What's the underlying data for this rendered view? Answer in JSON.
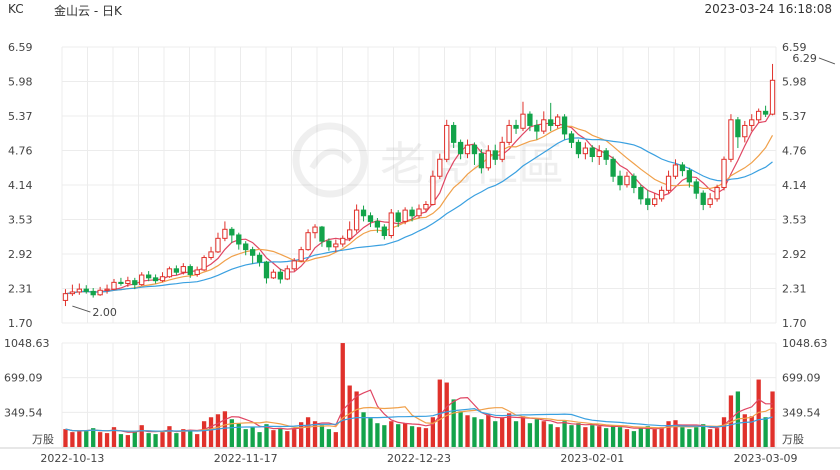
{
  "header": {
    "symbol": "KC",
    "name": "金山云 - 日K",
    "datetime": "2023-03-24 16:18:08"
  },
  "watermark": {
    "text": "老虎社區"
  },
  "colors": {
    "up": "#e0312b",
    "down": "#13a34a",
    "ma1": "#e04663",
    "ma2": "#f0a04a",
    "ma3": "#3aa0e0",
    "grid": "#ececec",
    "axis_text": "#444444"
  },
  "chart_data": {
    "type": "candlestick",
    "price_axis": {
      "ticks": [
        "6.59",
        "5.98",
        "5.37",
        "4.76",
        "4.14",
        "3.53",
        "2.92",
        "2.31",
        "1.70"
      ],
      "ylim": [
        1.7,
        6.59
      ]
    },
    "volume_axis": {
      "ticks": [
        "1048.63",
        "699.09",
        "349.54"
      ],
      "unit": "万股",
      "ylim": [
        0,
        1048.63
      ]
    },
    "x_ticks": [
      {
        "label": "2022-10-13",
        "index": 1
      },
      {
        "label": "2022-11-17",
        "index": 26
      },
      {
        "label": "2022-12-23",
        "index": 51
      },
      {
        "label": "2023-02-01",
        "index": 76
      },
      {
        "label": "2023-03-09",
        "index": 101
      }
    ],
    "annotations": [
      {
        "text": "6.29",
        "index": 111,
        "value": 6.29,
        "kind": "high"
      },
      {
        "text": "2.00",
        "index": 1,
        "value": 2.0,
        "kind": "low"
      }
    ],
    "candles": [
      [
        2.1,
        2.22,
        2.0,
        2.3,
        180
      ],
      [
        2.22,
        2.25,
        2.18,
        2.38,
        150
      ],
      [
        2.25,
        2.3,
        2.2,
        2.4,
        160
      ],
      [
        2.3,
        2.26,
        2.22,
        2.37,
        170
      ],
      [
        2.26,
        2.2,
        2.15,
        2.32,
        190
      ],
      [
        2.2,
        2.28,
        2.18,
        2.34,
        150
      ],
      [
        2.28,
        2.3,
        2.22,
        2.38,
        140
      ],
      [
        2.3,
        2.42,
        2.28,
        2.48,
        200
      ],
      [
        2.42,
        2.4,
        2.36,
        2.5,
        130
      ],
      [
        2.4,
        2.45,
        2.34,
        2.52,
        120
      ],
      [
        2.45,
        2.38,
        2.3,
        2.5,
        160
      ],
      [
        2.38,
        2.55,
        2.36,
        2.6,
        220
      ],
      [
        2.55,
        2.5,
        2.44,
        2.62,
        140
      ],
      [
        2.5,
        2.45,
        2.4,
        2.56,
        130
      ],
      [
        2.45,
        2.52,
        2.42,
        2.6,
        150
      ],
      [
        2.52,
        2.66,
        2.5,
        2.7,
        210
      ],
      [
        2.66,
        2.6,
        2.55,
        2.72,
        140
      ],
      [
        2.6,
        2.7,
        2.56,
        2.76,
        180
      ],
      [
        2.7,
        2.56,
        2.5,
        2.74,
        170
      ],
      [
        2.56,
        2.64,
        2.52,
        2.7,
        130
      ],
      [
        2.64,
        2.86,
        2.62,
        2.9,
        260
      ],
      [
        2.86,
        2.96,
        2.82,
        3.05,
        300
      ],
      [
        2.96,
        3.2,
        2.94,
        3.3,
        330
      ],
      [
        3.2,
        3.36,
        3.15,
        3.5,
        360
      ],
      [
        3.36,
        3.26,
        3.12,
        3.4,
        280
      ],
      [
        3.26,
        3.1,
        3.0,
        3.3,
        240
      ],
      [
        3.1,
        3.0,
        2.9,
        3.15,
        180
      ],
      [
        3.0,
        2.9,
        2.75,
        3.05,
        200
      ],
      [
        2.9,
        2.78,
        2.7,
        2.95,
        150
      ],
      [
        2.78,
        2.5,
        2.4,
        2.8,
        230
      ],
      [
        2.5,
        2.6,
        2.48,
        2.65,
        170
      ],
      [
        2.6,
        2.48,
        2.4,
        2.66,
        190
      ],
      [
        2.48,
        2.66,
        2.46,
        2.72,
        160
      ],
      [
        2.66,
        2.8,
        2.62,
        2.85,
        180
      ],
      [
        2.8,
        3.0,
        2.78,
        3.05,
        250
      ],
      [
        3.0,
        3.3,
        2.98,
        3.36,
        300
      ],
      [
        3.3,
        3.4,
        3.2,
        3.45,
        260
      ],
      [
        3.4,
        3.15,
        3.05,
        3.42,
        220
      ],
      [
        3.15,
        3.05,
        2.98,
        3.2,
        180
      ],
      [
        3.05,
        3.1,
        2.96,
        3.18,
        150
      ],
      [
        3.1,
        3.2,
        3.05,
        3.25,
        1048
      ],
      [
        3.2,
        3.35,
        3.15,
        3.5,
        620
      ],
      [
        3.35,
        3.7,
        3.3,
        3.8,
        560
      ],
      [
        3.7,
        3.6,
        3.5,
        3.78,
        350
      ],
      [
        3.6,
        3.5,
        3.4,
        3.66,
        290
      ],
      [
        3.5,
        3.4,
        3.3,
        3.56,
        240
      ],
      [
        3.4,
        3.25,
        3.18,
        3.45,
        220
      ],
      [
        3.25,
        3.65,
        3.2,
        3.72,
        260
      ],
      [
        3.65,
        3.5,
        3.4,
        3.7,
        230
      ],
      [
        3.5,
        3.7,
        3.45,
        3.75,
        240
      ],
      [
        3.7,
        3.6,
        3.5,
        3.76,
        210
      ],
      [
        3.6,
        3.72,
        3.55,
        3.8,
        200
      ],
      [
        3.72,
        3.8,
        3.66,
        3.86,
        190
      ],
      [
        3.8,
        4.3,
        3.78,
        4.4,
        300
      ],
      [
        4.3,
        4.6,
        4.25,
        4.7,
        680
      ],
      [
        4.6,
        5.2,
        4.55,
        5.3,
        650
      ],
      [
        5.2,
        4.9,
        4.8,
        5.26,
        480
      ],
      [
        4.9,
        4.7,
        4.6,
        4.95,
        360
      ],
      [
        4.7,
        4.85,
        4.62,
        4.95,
        320
      ],
      [
        4.85,
        4.7,
        4.5,
        4.9,
        300
      ],
      [
        4.7,
        4.45,
        4.35,
        4.78,
        280
      ],
      [
        4.45,
        4.75,
        4.4,
        4.85,
        330
      ],
      [
        4.75,
        4.6,
        4.5,
        4.86,
        260
      ],
      [
        4.6,
        4.9,
        4.55,
        5.0,
        300
      ],
      [
        4.9,
        5.2,
        4.85,
        5.3,
        340
      ],
      [
        5.2,
        5.15,
        5.05,
        5.3,
        260
      ],
      [
        5.15,
        5.4,
        5.1,
        5.62,
        310
      ],
      [
        5.4,
        5.2,
        5.1,
        5.45,
        240
      ],
      [
        5.2,
        5.1,
        4.95,
        5.3,
        280
      ],
      [
        5.1,
        5.3,
        5.05,
        5.45,
        260
      ],
      [
        5.3,
        5.2,
        5.1,
        5.6,
        230
      ],
      [
        5.2,
        5.35,
        5.15,
        5.4,
        200
      ],
      [
        5.35,
        5.05,
        4.95,
        5.4,
        260
      ],
      [
        5.05,
        4.9,
        4.8,
        5.1,
        220
      ],
      [
        4.9,
        4.7,
        4.62,
        4.95,
        240
      ],
      [
        4.7,
        4.8,
        4.6,
        4.9,
        200
      ],
      [
        4.8,
        4.65,
        4.55,
        4.85,
        220
      ],
      [
        4.65,
        4.75,
        4.5,
        4.85,
        210
      ],
      [
        4.75,
        4.6,
        4.5,
        4.8,
        190
      ],
      [
        4.6,
        4.3,
        4.2,
        4.65,
        220
      ],
      [
        4.3,
        4.15,
        4.05,
        4.4,
        200
      ],
      [
        4.15,
        4.3,
        4.1,
        4.38,
        180
      ],
      [
        4.3,
        4.1,
        4.0,
        4.35,
        160
      ],
      [
        4.1,
        3.9,
        3.8,
        4.15,
        190
      ],
      [
        3.9,
        3.8,
        3.7,
        4.05,
        210
      ],
      [
        3.8,
        3.9,
        3.76,
        4.0,
        180
      ],
      [
        3.9,
        4.05,
        3.85,
        4.12,
        200
      ],
      [
        4.05,
        4.3,
        4.0,
        4.4,
        260
      ],
      [
        4.3,
        4.5,
        4.25,
        4.6,
        270
      ],
      [
        4.5,
        4.4,
        4.3,
        4.55,
        200
      ],
      [
        4.4,
        4.2,
        4.1,
        4.45,
        180
      ],
      [
        4.2,
        4.0,
        3.9,
        4.25,
        200
      ],
      [
        4.0,
        3.8,
        3.7,
        4.05,
        230
      ],
      [
        3.8,
        3.9,
        3.74,
        4.0,
        180
      ],
      [
        3.9,
        4.1,
        3.85,
        4.15,
        190
      ],
      [
        4.1,
        4.6,
        4.05,
        4.65,
        300
      ],
      [
        4.6,
        5.3,
        4.55,
        5.4,
        520
      ],
      [
        5.3,
        5.0,
        4.8,
        5.35,
        560
      ],
      [
        5.0,
        5.2,
        4.9,
        5.28,
        330
      ],
      [
        5.2,
        5.3,
        5.1,
        5.4,
        310
      ],
      [
        5.3,
        5.45,
        5.25,
        5.5,
        680
      ],
      [
        5.45,
        5.4,
        5.35,
        5.55,
        300
      ],
      [
        5.4,
        6.0,
        5.38,
        6.29,
        560
      ]
    ]
  }
}
